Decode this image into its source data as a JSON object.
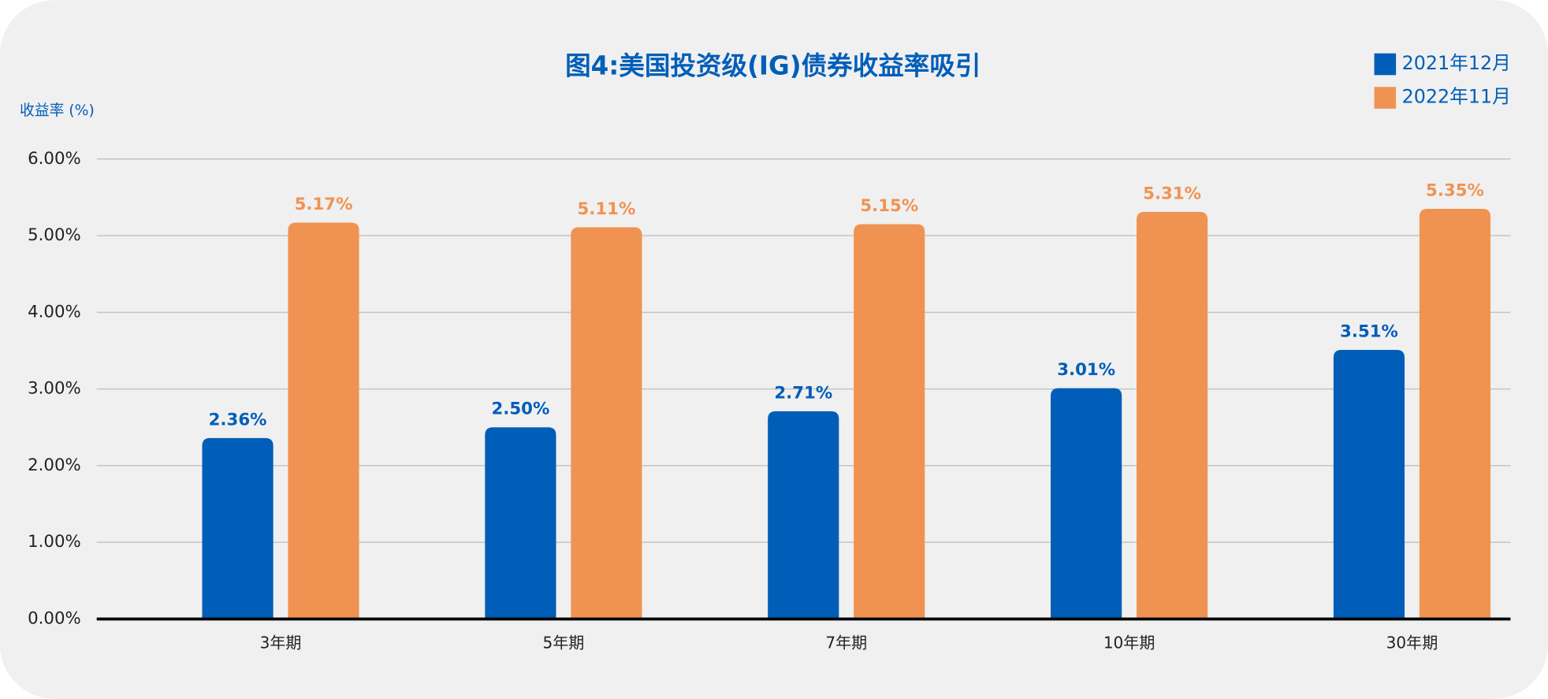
{
  "chart_data": {
    "type": "bar",
    "title": "图4:美国投资级(IG)债券收益率吸引",
    "y_label": "收益率 (%)",
    "categories": [
      "3年期",
      "5年期",
      "7年期",
      "10年期",
      "30年期"
    ],
    "series": [
      {
        "name": "2021年12月",
        "color": "#005eb8",
        "values": [
          2.36,
          2.5,
          2.71,
          3.01,
          3.51
        ],
        "value_labels": [
          "2.36%",
          "2.50%",
          "2.71%",
          "3.01%",
          "3.51%"
        ]
      },
      {
        "name": "2022年11月",
        "color": "#f09352",
        "values": [
          5.17,
          5.11,
          5.15,
          5.31,
          5.35
        ],
        "value_labels": [
          "5.17%",
          "5.11%",
          "5.15%",
          "5.31%",
          "5.35%"
        ]
      }
    ],
    "ylim": [
      0,
      6
    ],
    "yticks": [
      {
        "value": 0,
        "label": "0.00%"
      },
      {
        "value": 1,
        "label": "1.00%"
      },
      {
        "value": 2,
        "label": "2.00%"
      },
      {
        "value": 3,
        "label": "3.00%"
      },
      {
        "value": 4,
        "label": "4.00%"
      },
      {
        "value": 5,
        "label": "5.00%"
      },
      {
        "value": 6,
        "label": "6.00%"
      }
    ],
    "grid": true,
    "legend": "top-right"
  }
}
